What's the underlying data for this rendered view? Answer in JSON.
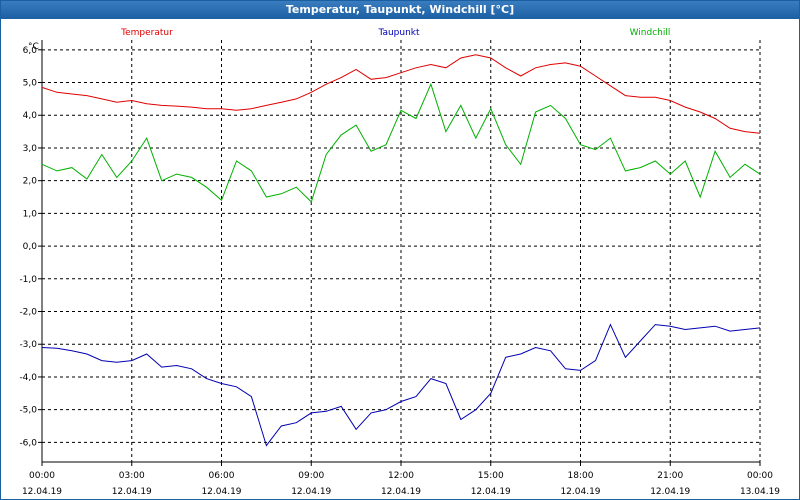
{
  "window": {
    "title": "Temperatur, Taupunkt, Windchill [°C]"
  },
  "chart_data": {
    "type": "line",
    "title": "Temperatur, Taupunkt, Windchill [°C]",
    "ylabel": "°C",
    "ylim": [
      -6.6,
      6.3
    ],
    "xlim": [
      0,
      24
    ],
    "grid": true,
    "yticks": [
      6.0,
      5.0,
      4.0,
      3.0,
      2.0,
      1.0,
      0.0,
      -1.0,
      -2.0,
      -3.0,
      -4.0,
      -5.0,
      -6.0
    ],
    "ytick_labels": [
      "6,0",
      "5,0",
      "4,0",
      "3,0",
      "2,0",
      "1,0",
      "0,0",
      "-1,0",
      "-2,0",
      "-3,0",
      "-4,0",
      "-5,0",
      "-6,0"
    ],
    "xticks": [
      0,
      3,
      6,
      9,
      12,
      15,
      18,
      21,
      24
    ],
    "xtick_times": [
      "00:00",
      "03:00",
      "06:00",
      "09:00",
      "12:00",
      "15:00",
      "18:00",
      "21:00",
      "00:00"
    ],
    "xtick_dates": [
      "12.04.19",
      "12.04.19",
      "12.04.19",
      "12.04.19",
      "12.04.19",
      "12.04.19",
      "12.04.19",
      "12.04.19",
      "13.04.19"
    ],
    "series": [
      {
        "name": "Temperatur",
        "color": "#e00000",
        "x": [
          0,
          0.5,
          1,
          1.5,
          2,
          2.5,
          3,
          3.5,
          4,
          4.5,
          5,
          5.5,
          6,
          6.5,
          7,
          7.5,
          8,
          8.5,
          9,
          9.5,
          10,
          10.5,
          11,
          11.5,
          12,
          12.5,
          13,
          13.5,
          14,
          14.5,
          15,
          15.5,
          16,
          16.5,
          17,
          17.5,
          18,
          18.5,
          19,
          19.5,
          20,
          20.5,
          21,
          21.5,
          22,
          22.5,
          23,
          23.5,
          24
        ],
        "values": [
          4.85,
          4.7,
          4.65,
          4.6,
          4.5,
          4.4,
          4.45,
          4.35,
          4.3,
          4.28,
          4.25,
          4.2,
          4.2,
          4.15,
          4.2,
          4.3,
          4.4,
          4.5,
          4.7,
          4.95,
          5.15,
          5.4,
          5.1,
          5.15,
          5.3,
          5.45,
          5.55,
          5.45,
          5.75,
          5.85,
          5.75,
          5.45,
          5.2,
          5.45,
          5.55,
          5.6,
          5.5,
          5.2,
          4.9,
          4.6,
          4.55,
          4.55,
          4.45,
          4.25,
          4.1,
          3.9,
          3.6,
          3.5,
          3.45
        ]
      },
      {
        "name": "Taupunkt",
        "color": "#0000b0",
        "x": [
          0,
          0.5,
          1,
          1.5,
          2,
          2.5,
          3,
          3.5,
          4,
          4.5,
          5,
          5.5,
          6,
          6.5,
          7,
          7.5,
          8,
          8.5,
          9,
          9.5,
          10,
          10.5,
          11,
          11.5,
          12,
          12.5,
          13,
          13.5,
          14,
          14.5,
          15,
          15.5,
          16,
          16.5,
          17,
          17.5,
          18,
          18.5,
          19,
          19.5,
          20,
          20.5,
          21,
          21.5,
          22,
          22.5,
          23,
          23.5,
          24
        ],
        "values": [
          -3.1,
          -3.12,
          -3.2,
          -3.3,
          -3.5,
          -3.55,
          -3.5,
          -3.3,
          -3.7,
          -3.65,
          -3.75,
          -4.05,
          -4.2,
          -4.3,
          -4.6,
          -6.1,
          -5.5,
          -5.4,
          -5.1,
          -5.05,
          -4.9,
          -5.6,
          -5.1,
          -5.0,
          -4.75,
          -4.6,
          -4.05,
          -4.2,
          -5.3,
          -5.0,
          -4.5,
          -3.4,
          -3.3,
          -3.1,
          -3.2,
          -3.75,
          -3.8,
          -3.5,
          -2.4,
          -3.4,
          -2.9,
          -2.4,
          -2.45,
          -2.55,
          -2.5,
          -2.45,
          -2.6,
          -2.55,
          -2.5
        ]
      },
      {
        "name": "Windchill",
        "color": "#00b000",
        "x": [
          0,
          0.5,
          1,
          1.5,
          2,
          2.5,
          3,
          3.5,
          4,
          4.5,
          5,
          5.5,
          6,
          6.5,
          7,
          7.5,
          8,
          8.5,
          9,
          9.5,
          10,
          10.5,
          11,
          11.5,
          12,
          12.5,
          13,
          13.5,
          14,
          14.5,
          15,
          15.5,
          16,
          16.5,
          17,
          17.5,
          18,
          18.5,
          19,
          19.5,
          20,
          20.5,
          21,
          21.5,
          22,
          22.5,
          23,
          23.5,
          24
        ],
        "values": [
          2.5,
          2.3,
          2.4,
          2.05,
          2.8,
          2.1,
          2.6,
          3.3,
          2.0,
          2.2,
          2.1,
          1.8,
          1.4,
          2.6,
          2.3,
          1.5,
          1.6,
          1.8,
          1.35,
          2.8,
          3.4,
          3.7,
          2.9,
          3.1,
          4.15,
          3.9,
          4.95,
          3.5,
          4.3,
          3.3,
          4.2,
          3.1,
          2.5,
          4.1,
          4.3,
          3.9,
          3.1,
          2.95,
          3.3,
          2.3,
          2.4,
          2.6,
          2.2,
          2.6,
          1.5,
          2.9,
          2.1,
          2.5,
          2.2
        ]
      }
    ]
  }
}
